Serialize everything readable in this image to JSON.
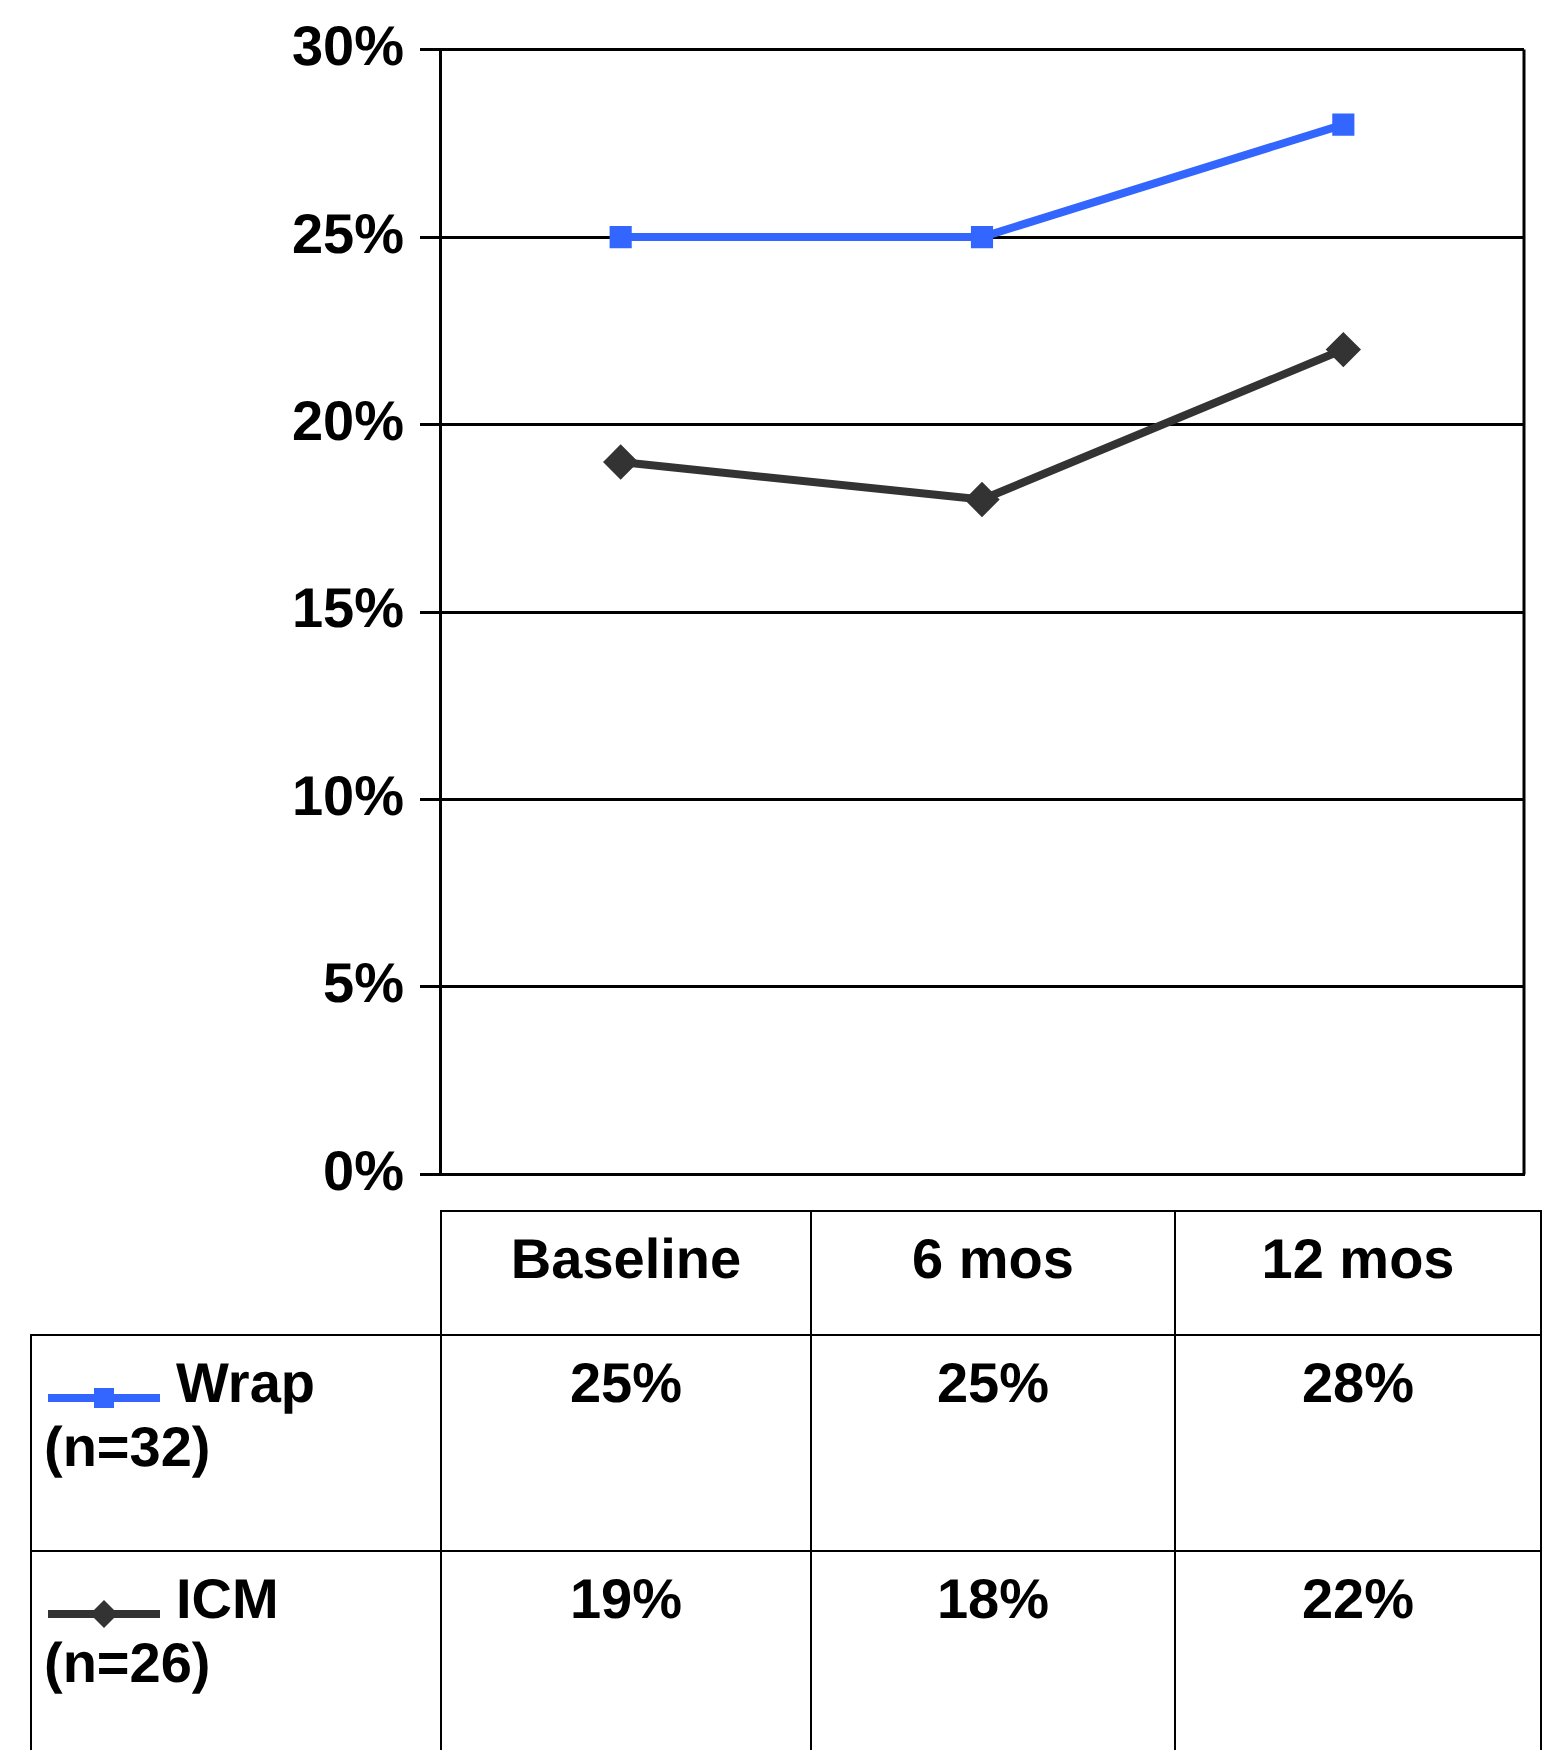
{
  "chart_data": {
    "type": "line",
    "categories": [
      "Baseline",
      "6 mos",
      "12 mos"
    ],
    "series": [
      {
        "name": "Wrap (n=32)",
        "color": "#3366ff",
        "marker": "square",
        "values": [
          25,
          25,
          28
        ],
        "value_labels": [
          "25%",
          "25%",
          "28%"
        ]
      },
      {
        "name": "ICM (n=26)",
        "color": "#333333",
        "marker": "diamond",
        "values": [
          19,
          18,
          22
        ],
        "value_labels": [
          "19%",
          "18%",
          "22%"
        ]
      }
    ],
    "ylim": [
      0,
      30
    ],
    "yticks": [
      {
        "value": 0,
        "label": "0%"
      },
      {
        "value": 5,
        "label": "5%"
      },
      {
        "value": 10,
        "label": "10%"
      },
      {
        "value": 15,
        "label": "15%"
      },
      {
        "value": 20,
        "label": "20%"
      },
      {
        "value": 25,
        "label": "25%"
      },
      {
        "value": 30,
        "label": "30%"
      }
    ],
    "grid": "y",
    "legend": "bottom"
  }
}
